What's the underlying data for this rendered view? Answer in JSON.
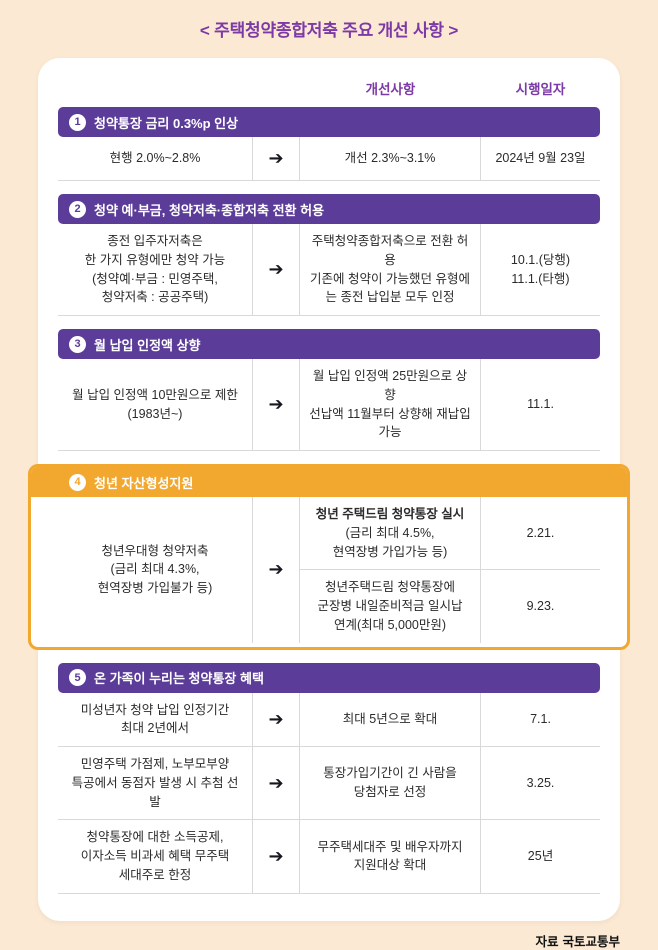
{
  "page": {
    "title": "< 주택청약종합저축 주요 개선 사항 >"
  },
  "columns": {
    "improvement": "개선사항",
    "date": "시행일자"
  },
  "icons": {
    "arrow": "➔"
  },
  "colors": {
    "bg": "#FCE9D3",
    "card": "#FFFFFF",
    "purple": "#5C3C99",
    "title_purple": "#7C3AA6",
    "gold": "#F2A72E",
    "border": "#D9D9D9",
    "text": "#2B2B2B",
    "arrow": "#17171F"
  },
  "sections": [
    {
      "num": "1",
      "title": "청약통장 금리 0.3%p 인상",
      "rows": [
        {
          "before": "현행 2.0%~2.8%",
          "after": "개선 2.3%~3.1%",
          "date": "2024년 9월 23일"
        }
      ]
    },
    {
      "num": "2",
      "title": "청약 예·부금, 청약저축·종합저축 전환 허용",
      "rows": [
        {
          "before": "종전 입주자저축은\n한 가지 유형에만 청약 가능\n(청약예·부금 : 민영주택,\n청약저축 : 공공주택)",
          "after": "주택청약종합저축으로 전환 허용\n기존에 청약이 가능했던 유형에\n는 종전 납입분 모두 인정",
          "date": "10.1.(당행)\n11.1.(타행)"
        }
      ]
    },
    {
      "num": "3",
      "title": "월 납입 인정액 상향",
      "rows": [
        {
          "before": "월 납입 인정액 10만원으로 제한\n(1983년~)",
          "after": "월 납입 인정액 25만원으로 상향\n선납액 11월부터 상향해 재납입\n가능",
          "date": "11.1."
        }
      ]
    },
    {
      "num": "4",
      "title": "청년 자산형성지원",
      "before_shared": "청년우대형 청약저축\n(금리 최대 4.3%,\n현역장병 가입불가 등)",
      "rows": [
        {
          "after_bold": "청년 주택드림 청약통장 실시",
          "after": "(금리 최대 4.5%,\n현역장병 가입가능 등)",
          "date": "2.21."
        },
        {
          "after": "청년주택드림 청약통장에\n군장병 내일준비적금 일시납\n연계(최대 5,000만원)",
          "date": "9.23."
        }
      ]
    },
    {
      "num": "5",
      "title": "온 가족이 누리는 청약통장 혜택",
      "rows": [
        {
          "before": "미성년자 청약 납입 인정기간\n최대 2년에서",
          "after": "최대 5년으로 확대",
          "date": "7.1."
        },
        {
          "before": "민영주택 가점제, 노부모부양\n특공에서 동점자 발생 시 추첨 선발",
          "after": "통장가입기간이 긴 사람을\n당첨자로 선정",
          "date": "3.25."
        },
        {
          "before": "청약통장에 대한 소득공제,\n이자소득 비과세 혜택 무주택\n세대주로 한정",
          "after": "무주택세대주 및 배우자까지\n지원대상 확대",
          "date": "25년"
        }
      ]
    }
  ],
  "footer": {
    "source_label": "자료",
    "source_value": "국토교통부"
  }
}
